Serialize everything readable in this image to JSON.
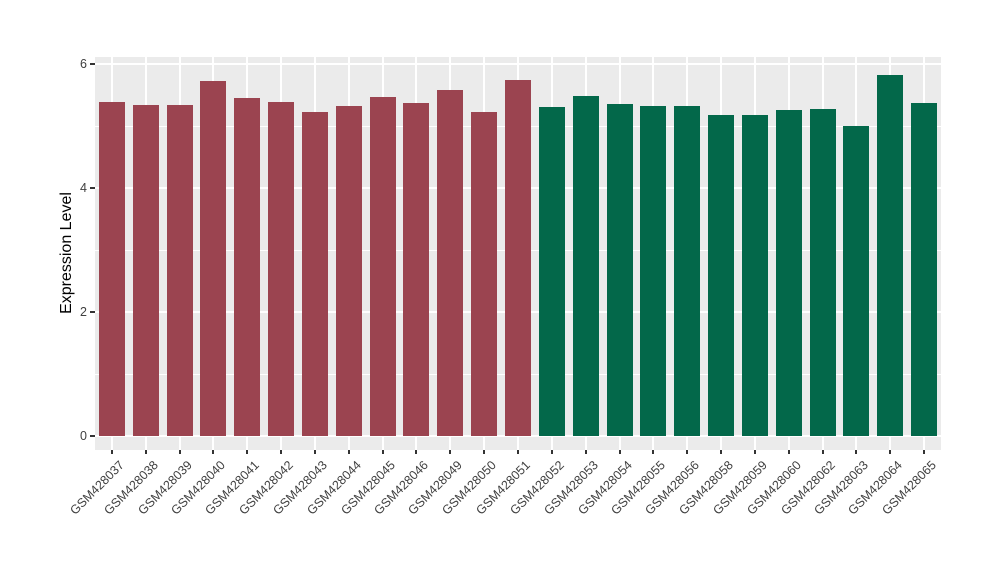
{
  "figure": {
    "background": "#FFFFFF"
  },
  "chart_data": {
    "type": "bar",
    "title": "",
    "xlabel": "",
    "ylabel": "Expression Level",
    "categories": [
      "GSM428037",
      "GSM428038",
      "GSM428039",
      "GSM428040",
      "GSM428041",
      "GSM428042",
      "GSM428043",
      "GSM428044",
      "GSM428045",
      "GSM428046",
      "GSM428049",
      "GSM428050",
      "GSM428051",
      "GSM428052",
      "GSM428053",
      "GSM428054",
      "GSM428055",
      "GSM428056",
      "GSM428058",
      "GSM428059",
      "GSM428060",
      "GSM428062",
      "GSM428063",
      "GSM428064",
      "GSM428065"
    ],
    "values": [
      5.39,
      5.34,
      5.34,
      5.72,
      5.45,
      5.39,
      5.23,
      5.32,
      5.46,
      5.37,
      5.58,
      5.23,
      5.75,
      5.31,
      5.48,
      5.36,
      5.32,
      5.32,
      5.17,
      5.18,
      5.26,
      5.28,
      5.0,
      5.82,
      5.37
    ],
    "color_groups": [
      {
        "name": "group-1",
        "color": "#9B4450",
        "count": 13
      },
      {
        "name": "group-2",
        "color": "#03684A",
        "count": 12
      }
    ],
    "ylim": [
      0,
      6.1
    ],
    "yticks": [
      0,
      2,
      4,
      6
    ],
    "yticks_minor": [
      1,
      3,
      5
    ],
    "grid": "on",
    "legend": "none",
    "x_label_rotation_deg": 45,
    "panel_background": "#EBEBEB",
    "gridline_color": "#FFFFFF",
    "axis_text_color": "#404040",
    "tick_color": "#333333"
  }
}
